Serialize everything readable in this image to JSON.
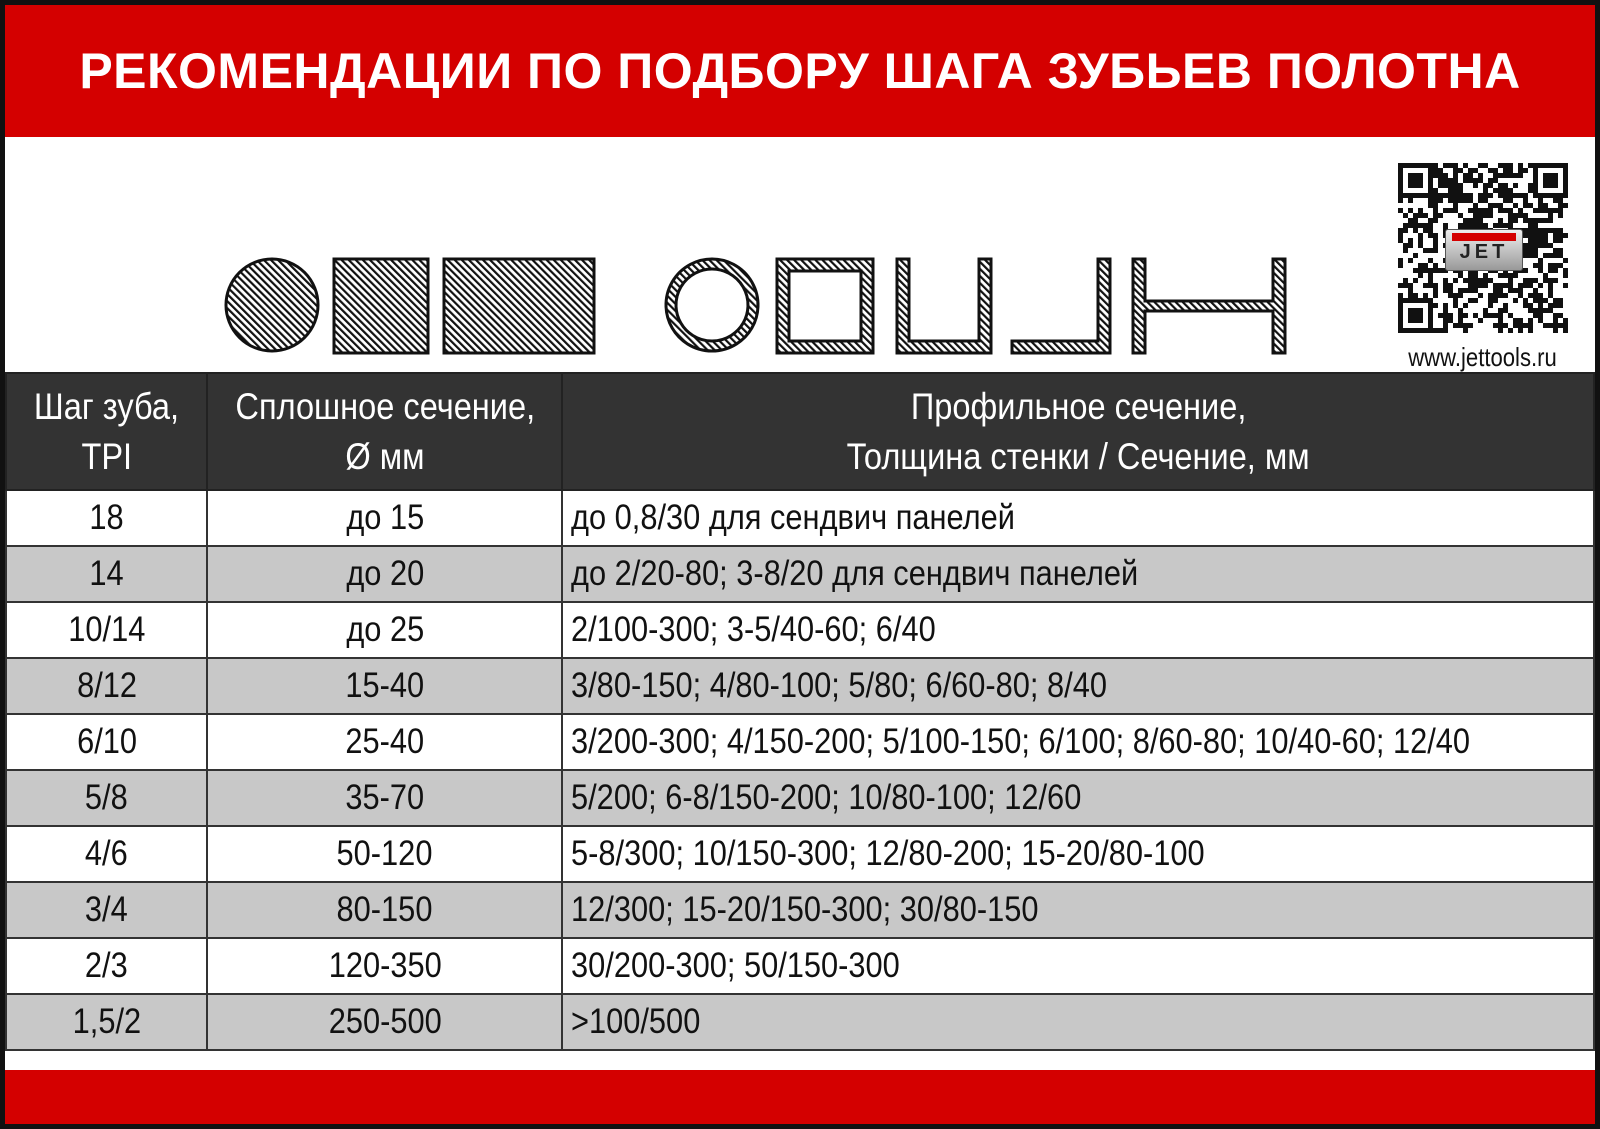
{
  "title": "РЕКОМЕНДАЦИИ ПО ПОДБОРУ ШАГА ЗУБЬЕВ ПОЛОТНА",
  "brand": {
    "logo_text": "JET",
    "url": "www.jettools.ru",
    "qr_code": "qr-code-icon"
  },
  "colors": {
    "accent": "#d40000",
    "header_bg": "#333333",
    "stripe": "#c8c8c8"
  },
  "shapes": [
    "round-bar-icon",
    "square-bar-icon",
    "rect-bar-icon",
    "round-tube-icon",
    "square-tube-icon",
    "channel-icon",
    "angle-icon",
    "i-beam-icon"
  ],
  "table": {
    "headers": [
      [
        "Шаг зуба,",
        "TPI"
      ],
      [
        "Сплошное сечение,",
        "Ø мм"
      ],
      [
        "Профильное сечение,",
        "Толщина стенки / Сечение, мм"
      ]
    ],
    "rows": [
      [
        "18",
        "до 15",
        "до 0,8/30 для сендвич панелей"
      ],
      [
        "14",
        "до 20",
        "до 2/20-80; 3-8/20 для сендвич панелей"
      ],
      [
        "10/14",
        "до 25",
        "2/100-300; 3-5/40-60;  6/40"
      ],
      [
        "8/12",
        "15-40",
        "3/80-150; 4/80-100; 5/80; 6/60-80; 8/40"
      ],
      [
        "6/10",
        "25-40",
        "3/200-300; 4/150-200; 5/100-150; 6/100; 8/60-80; 10/40-60; 12/40"
      ],
      [
        "5/8",
        "35-70",
        "5/200; 6-8/150-200; 10/80-100; 12/60"
      ],
      [
        "4/6",
        "50-120",
        "5-8/300; 10/150-300; 12/80-200; 15-20/80-100"
      ],
      [
        "3/4",
        "80-150",
        "12/300; 15-20/150-300; 30/80-150"
      ],
      [
        "2/3",
        "120-350",
        "30/200-300; 50/150-300"
      ],
      [
        "1,5/2",
        "250-500",
        ">100/500"
      ]
    ]
  }
}
